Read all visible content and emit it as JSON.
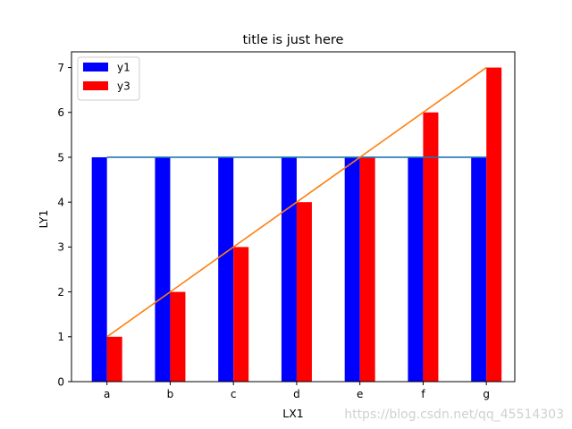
{
  "chart_data": {
    "type": "bar",
    "title": "title is just here",
    "xlabel": "LX1",
    "ylabel": "LY1",
    "categories": [
      "a",
      "b",
      "c",
      "d",
      "e",
      "f",
      "g"
    ],
    "ylim": [
      0,
      7.35
    ],
    "yticks": [
      0,
      1,
      2,
      3,
      4,
      5,
      6,
      7
    ],
    "grid": false,
    "legend_position": "top-left",
    "series": [
      {
        "name": "y1",
        "kind": "bar",
        "color": "#0000ff",
        "values": [
          5,
          5,
          5,
          5,
          5,
          5,
          5
        ]
      },
      {
        "name": "y3",
        "kind": "bar",
        "color": "#ff0000",
        "values": [
          1,
          2,
          3,
          4,
          5,
          6,
          7
        ]
      }
    ],
    "lines": [
      {
        "color": "#1f77b4",
        "values": [
          5,
          5,
          5,
          5,
          5,
          5,
          5
        ]
      },
      {
        "color": "#ff7f0e",
        "values": [
          1,
          2,
          3,
          4,
          5,
          6,
          7
        ]
      }
    ]
  },
  "watermark": "https://blog.csdn.net/qq_45514303"
}
